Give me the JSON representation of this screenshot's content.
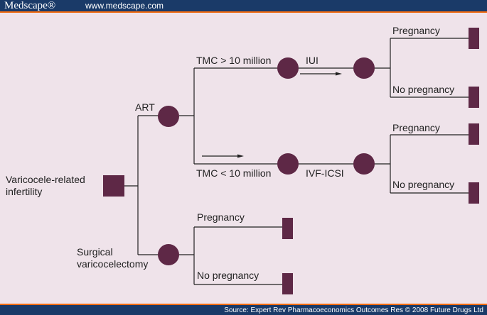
{
  "header": {
    "logo": "Medscape®",
    "url": "www.medscape.com"
  },
  "footer": {
    "source": "Source: Expert Rev Pharmacoeconomics Outcomes Res © 2008 Future Drugs Ltd"
  },
  "colors": {
    "node": "#5e2846",
    "background": "#efe3ea",
    "header": "#1a3a68",
    "accent": "#f06a10"
  },
  "tree": {
    "root": [
      "Varicocele-related",
      "infertility"
    ],
    "art": "ART",
    "tmc_high": "TMC > 10 million",
    "tmc_low": "TMC < 10 million",
    "iui": "IUI",
    "ivf": "IVF-ICSI",
    "surgery": [
      "Surgical",
      "varicocelectomy"
    ],
    "pregnancy": "Pregnancy",
    "no_pregnancy": "No pregnancy"
  }
}
